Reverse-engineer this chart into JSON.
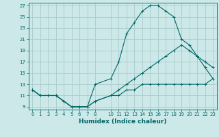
{
  "xlabel": "Humidex (Indice chaleur)",
  "ylabel": "",
  "bg_color": "#cce8e8",
  "grid_color": "#aacccc",
  "line_color": "#006666",
  "xlim": [
    -0.5,
    23.5
  ],
  "ylim": [
    8.5,
    27.5
  ],
  "xticks": [
    0,
    1,
    2,
    3,
    4,
    5,
    6,
    7,
    8,
    10,
    11,
    12,
    13,
    14,
    15,
    16,
    17,
    18,
    19,
    20,
    21,
    22,
    23
  ],
  "yticks": [
    9,
    11,
    13,
    15,
    17,
    19,
    21,
    23,
    25,
    27
  ],
  "curve1_x": [
    0,
    1,
    2,
    3,
    4,
    5,
    6,
    7,
    8,
    10,
    11,
    12,
    13,
    14,
    15,
    16,
    17,
    18,
    19,
    20,
    21,
    22,
    23
  ],
  "curve1_y": [
    12,
    11,
    11,
    11,
    10,
    9,
    9,
    9,
    13,
    14,
    17,
    22,
    24,
    26,
    27,
    27,
    26,
    25,
    21,
    20,
    18,
    16,
    14
  ],
  "curve2_x": [
    0,
    1,
    2,
    3,
    4,
    5,
    6,
    7,
    8,
    10,
    11,
    12,
    13,
    14,
    15,
    16,
    17,
    18,
    19,
    20,
    21,
    22,
    23
  ],
  "curve2_y": [
    12,
    11,
    11,
    11,
    10,
    9,
    9,
    9,
    10,
    11,
    12,
    13,
    14,
    15,
    16,
    17,
    18,
    19,
    20,
    19,
    18,
    17,
    16
  ],
  "curve3_x": [
    0,
    1,
    2,
    3,
    4,
    5,
    6,
    7,
    8,
    10,
    11,
    12,
    13,
    14,
    15,
    16,
    17,
    18,
    19,
    20,
    21,
    22,
    23
  ],
  "curve3_y": [
    12,
    11,
    11,
    11,
    10,
    9,
    9,
    9,
    10,
    11,
    11,
    12,
    12,
    13,
    13,
    13,
    13,
    13,
    13,
    13,
    13,
    13,
    14
  ]
}
